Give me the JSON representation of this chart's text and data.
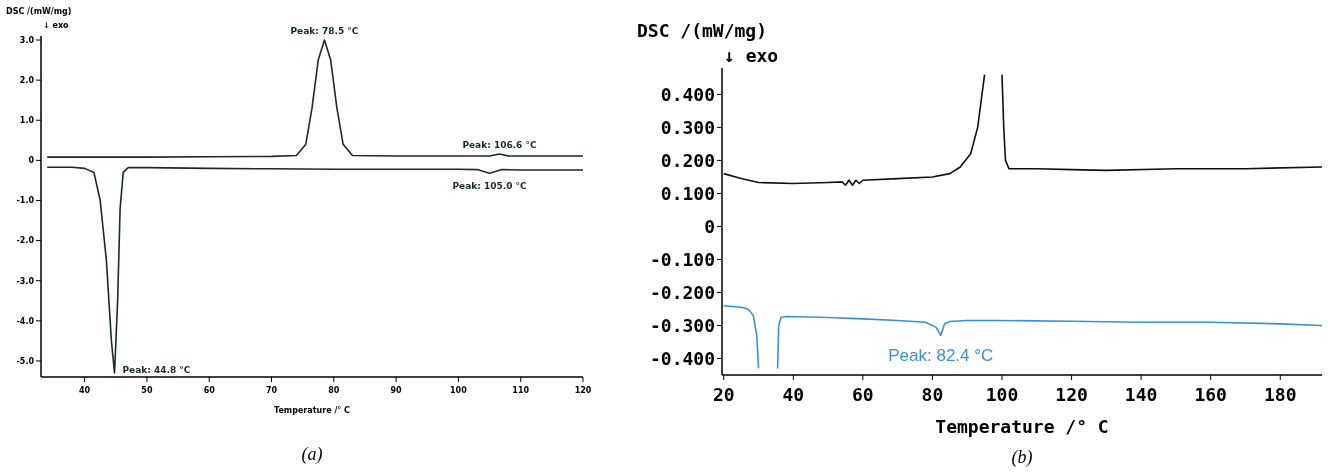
{
  "chart_data": [
    {
      "type": "line",
      "ylabel": "DSC /(mW/mg)",
      "xlabel": "Temperature /° C",
      "xlim": [
        33,
        120
      ],
      "ylim": [
        -5.4,
        3.1
      ],
      "xticks": [
        40,
        50,
        60,
        70,
        80,
        90,
        100,
        110,
        120
      ],
      "yticks": [
        {
          "value": 3,
          "label": "3.0"
        },
        {
          "value": 2,
          "label": "2.0"
        },
        {
          "value": 1,
          "label": "1.0"
        },
        0,
        {
          "value": -1,
          "label": "-1.0"
        },
        {
          "value": -2,
          "label": "-2.0"
        },
        {
          "value": -3,
          "label": "-3.0"
        },
        {
          "value": -4,
          "label": "-4.0"
        },
        {
          "value": -5,
          "label": "-5.0"
        }
      ],
      "series": [
        {
          "color": "#1a2a2a",
          "x": [
            34,
            50,
            60,
            70,
            74,
            75.5,
            76.5,
            77.5,
            78.5,
            79.5,
            80.5,
            81.5,
            83,
            90,
            100,
            105,
            106.6,
            108,
            115,
            120
          ],
          "values": [
            0.08,
            0.08,
            0.09,
            0.1,
            0.12,
            0.4,
            1.3,
            2.5,
            3.0,
            2.5,
            1.3,
            0.4,
            0.12,
            0.11,
            0.11,
            0.11,
            0.16,
            0.11,
            0.11,
            0.11
          ]
        },
        {
          "color": "#1a2a2a",
          "x": [
            34,
            38,
            40,
            41.5,
            42.5,
            43.5,
            44.3,
            44.8,
            45.3,
            45.7,
            46.2,
            47,
            50,
            60,
            70,
            80,
            90,
            100,
            103,
            105,
            107,
            110,
            120
          ],
          "values": [
            -0.17,
            -0.17,
            -0.2,
            -0.3,
            -1.0,
            -2.5,
            -4.5,
            -5.3,
            -3.5,
            -1.2,
            -0.3,
            -0.18,
            -0.18,
            -0.2,
            -0.21,
            -0.22,
            -0.22,
            -0.22,
            -0.23,
            -0.32,
            -0.23,
            -0.24,
            -0.24
          ]
        }
      ],
      "annotations": [
        {
          "text": "Peak: 78.5 °C",
          "x": 78.5,
          "y": 3.0
        },
        {
          "text": "Peak: 106.6 °C",
          "x": 106.6,
          "y": 0.16
        },
        {
          "text": "Peak: 105.0 °C",
          "x": 105,
          "y": -0.32
        },
        {
          "text": "Peak: 44.8 °C",
          "x": 44.8,
          "y": -5.3
        },
        "↓ exo",
        "(a)"
      ]
    },
    {
      "type": "line",
      "ylabel": "DSC /(mW/mg)",
      "xlabel": "Temperature /° C",
      "xlim": [
        19.5,
        192
      ],
      "ylim": [
        -0.45,
        0.48
      ],
      "xticks": [
        20,
        40,
        60,
        80,
        100,
        120,
        140,
        160,
        180
      ],
      "yticks": [
        {
          "value": 0.4,
          "label": "0.400"
        },
        {
          "value": 0.3,
          "label": "0.300"
        },
        {
          "value": 0.2,
          "label": "0.200"
        },
        {
          "value": 0.1,
          "label": "0.100"
        },
        0,
        {
          "value": -0.1,
          "label": "-0.100"
        },
        {
          "value": -0.2,
          "label": "-0.200"
        },
        {
          "value": -0.3,
          "label": "-0.300"
        },
        {
          "value": -0.4,
          "label": "-0.400"
        }
      ],
      "series": [
        {
          "color": "#111111",
          "x": [
            20,
            25,
            30,
            40,
            50,
            54,
            55,
            56,
            57,
            58,
            59,
            60,
            70,
            80,
            85,
            88,
            91,
            93,
            94,
            95,
            95.2,
            100,
            100.5,
            101,
            102,
            110,
            120,
            130,
            150,
            170,
            192
          ],
          "values": [
            0.16,
            0.145,
            0.133,
            0.13,
            0.133,
            0.135,
            0.125,
            0.14,
            0.125,
            0.14,
            0.13,
            0.14,
            0.145,
            0.15,
            0.16,
            0.18,
            0.22,
            0.3,
            0.38,
            0.46,
            null,
            0.46,
            0.3,
            0.2,
            0.175,
            0.175,
            0.172,
            0.17,
            0.175,
            0.175,
            0.18
          ]
        },
        {
          "color": "#3a8fd8",
          "x": [
            20,
            25,
            27,
            28.5,
            29.5,
            30,
            30.2,
            35.5,
            35.8,
            36.5,
            38,
            50,
            60,
            70,
            78,
            81,
            82.4,
            83.5,
            85,
            90,
            100,
            120,
            140,
            160,
            180,
            192
          ],
          "values": [
            -0.24,
            -0.245,
            -0.25,
            -0.27,
            -0.33,
            -0.43,
            null,
            -0.43,
            -0.3,
            -0.275,
            -0.273,
            -0.276,
            -0.28,
            -0.285,
            -0.29,
            -0.305,
            -0.33,
            -0.295,
            -0.288,
            -0.285,
            -0.285,
            -0.287,
            -0.29,
            -0.29,
            -0.295,
            -0.3
          ]
        }
      ],
      "annotations": [
        {
          "text": "Peak: 82.4 °C",
          "x": 82.4,
          "y": -0.33
        },
        "↓ exo",
        "(b)"
      ]
    }
  ]
}
